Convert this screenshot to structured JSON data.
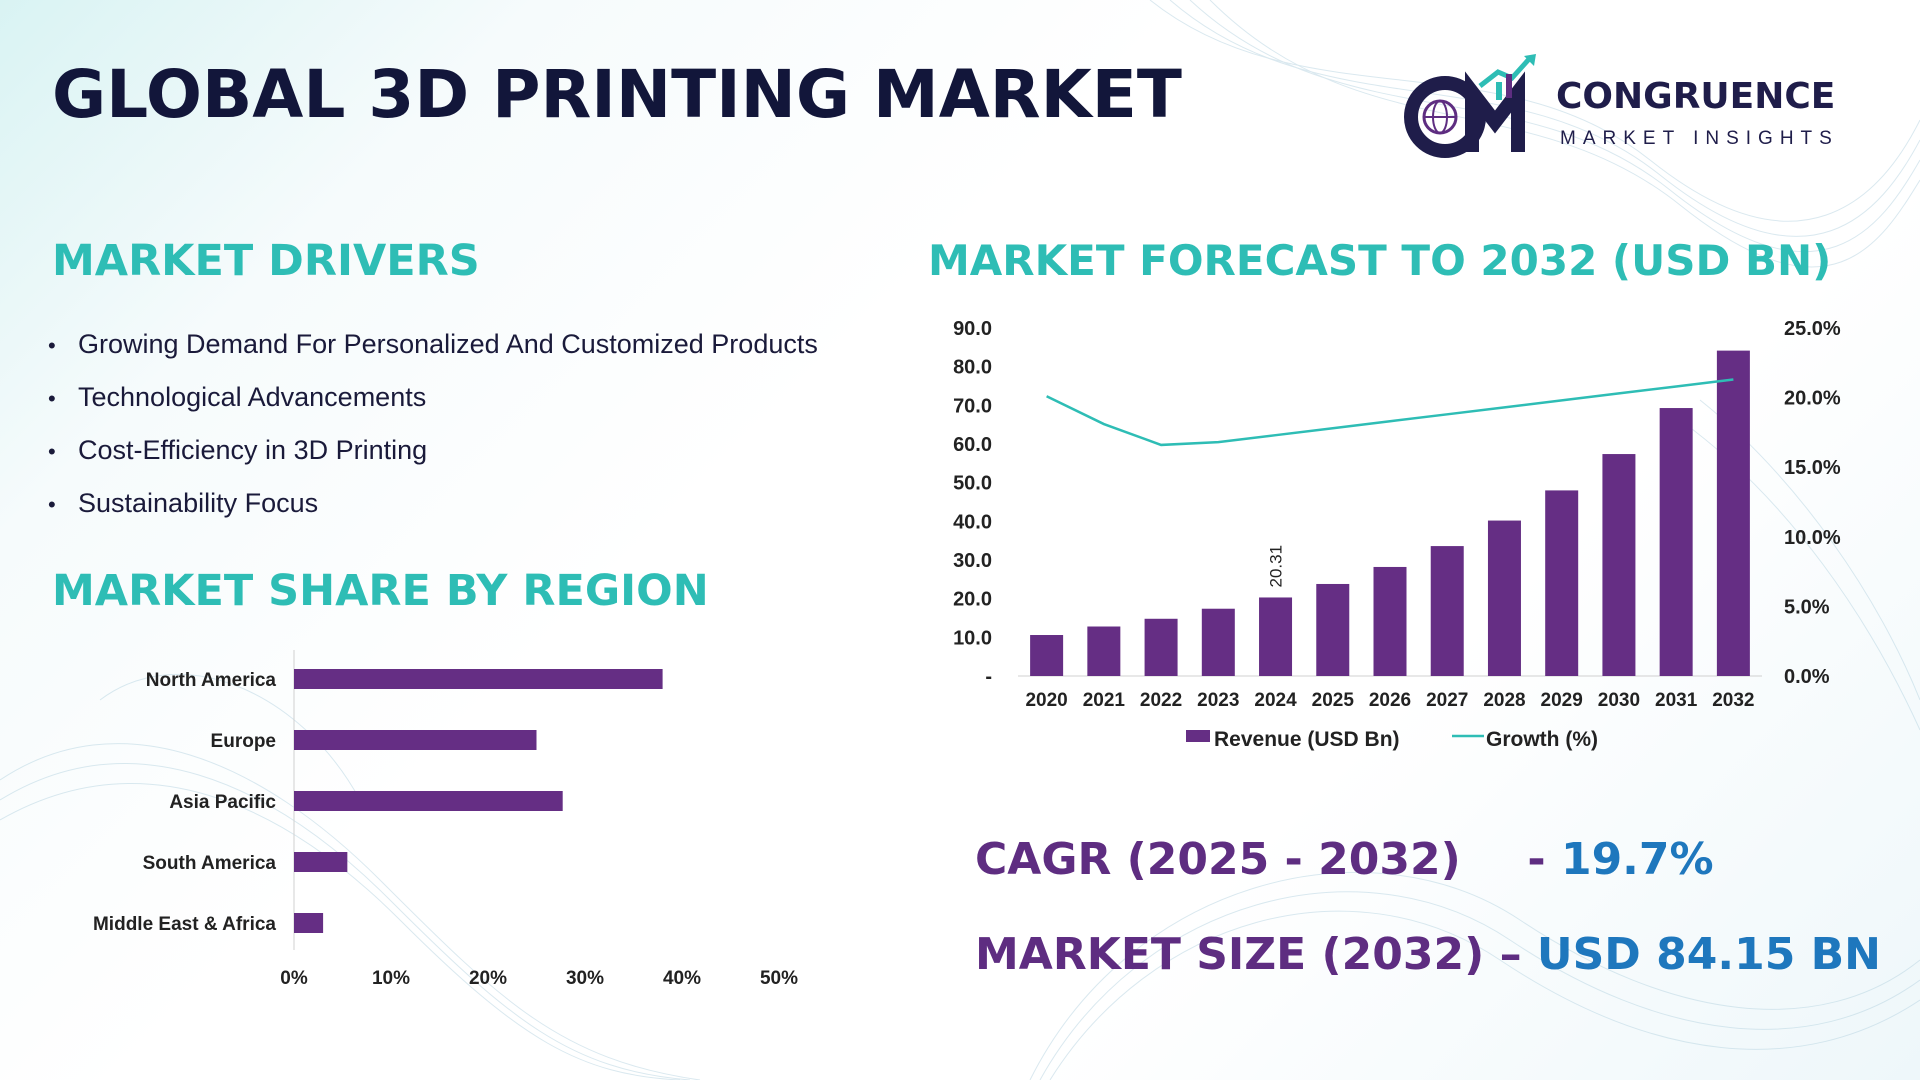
{
  "page": {
    "title": "GLOBAL 3D PRINTING MARKET"
  },
  "logo": {
    "word": "CONGRUENCE",
    "sub": "MARKET INSIGHTS",
    "mark": "CM"
  },
  "drivers": {
    "title": "MARKET DRIVERS",
    "bullet": "•",
    "items": [
      "Growing Demand For Personalized And Customized Products",
      "Technological Advancements",
      "Cost-Efficiency in 3D Printing",
      "Sustainability Focus"
    ]
  },
  "region": {
    "title": "MARKET SHARE BY REGION"
  },
  "forecast": {
    "title": "MARKET FORECAST TO 2032 (USD BN)"
  },
  "kpis": {
    "cagr_label": "CAGR (2025 - 2032)",
    "cagr_dash": "-",
    "cagr_value": "19.7%",
    "size_label": "MARKET SIZE (2032)",
    "size_dash": "–",
    "size_value": "USD 84.15 BN"
  },
  "colors": {
    "bar": "#652e84",
    "line": "#2ebdb5",
    "teal_title": "#2ebdb5",
    "purple": "#5e2d81",
    "blue_value": "#1e77bd",
    "navy": "#12163a"
  },
  "chart_data": [
    {
      "type": "bar",
      "orientation": "horizontal",
      "categories": [
        "North America",
        "Europe",
        "Asia Pacific",
        "South America",
        "Middle East & Africa"
      ],
      "values": [
        38,
        25,
        27.7,
        5.5,
        3
      ],
      "xlim": [
        0,
        50
      ],
      "x_ticks": [
        "0%",
        "10%",
        "20%",
        "30%",
        "40%",
        "50%"
      ],
      "x_tick_values": [
        0,
        10,
        20,
        30,
        40,
        50
      ],
      "grid": false,
      "legend": "none"
    },
    {
      "type": "bar",
      "categories": [
        "2020",
        "2021",
        "2022",
        "2023",
        "2024",
        "2025",
        "2026",
        "2027",
        "2028",
        "2029",
        "2030",
        "2031",
        "2032"
      ],
      "series": [
        {
          "name": "Revenue (USD Bn)",
          "type": "bar",
          "axis": "left",
          "values": [
            10.6,
            12.8,
            14.8,
            17.4,
            20.31,
            23.8,
            28.2,
            33.6,
            40.2,
            48.0,
            57.4,
            69.3,
            84.15
          ]
        },
        {
          "name": "Growth (%)",
          "type": "line",
          "axis": "right",
          "values": [
            20.1,
            18.1,
            16.6,
            16.8,
            17.3,
            17.8,
            18.3,
            18.8,
            19.3,
            19.8,
            20.3,
            20.8,
            21.3
          ]
        }
      ],
      "data_labels": [
        {
          "category": "2024",
          "text": "20.31"
        }
      ],
      "ylim_left": [
        0,
        90
      ],
      "y_ticks_left": [
        "-",
        "10.0",
        "20.0",
        "30.0",
        "40.0",
        "50.0",
        "60.0",
        "70.0",
        "80.0",
        "90.0"
      ],
      "ylim_right": [
        0,
        25
      ],
      "y_ticks_right": [
        "0.0%",
        "5.0%",
        "10.0%",
        "15.0%",
        "20.0%",
        "25.0%"
      ],
      "grid": false,
      "legend": "bottom"
    }
  ]
}
